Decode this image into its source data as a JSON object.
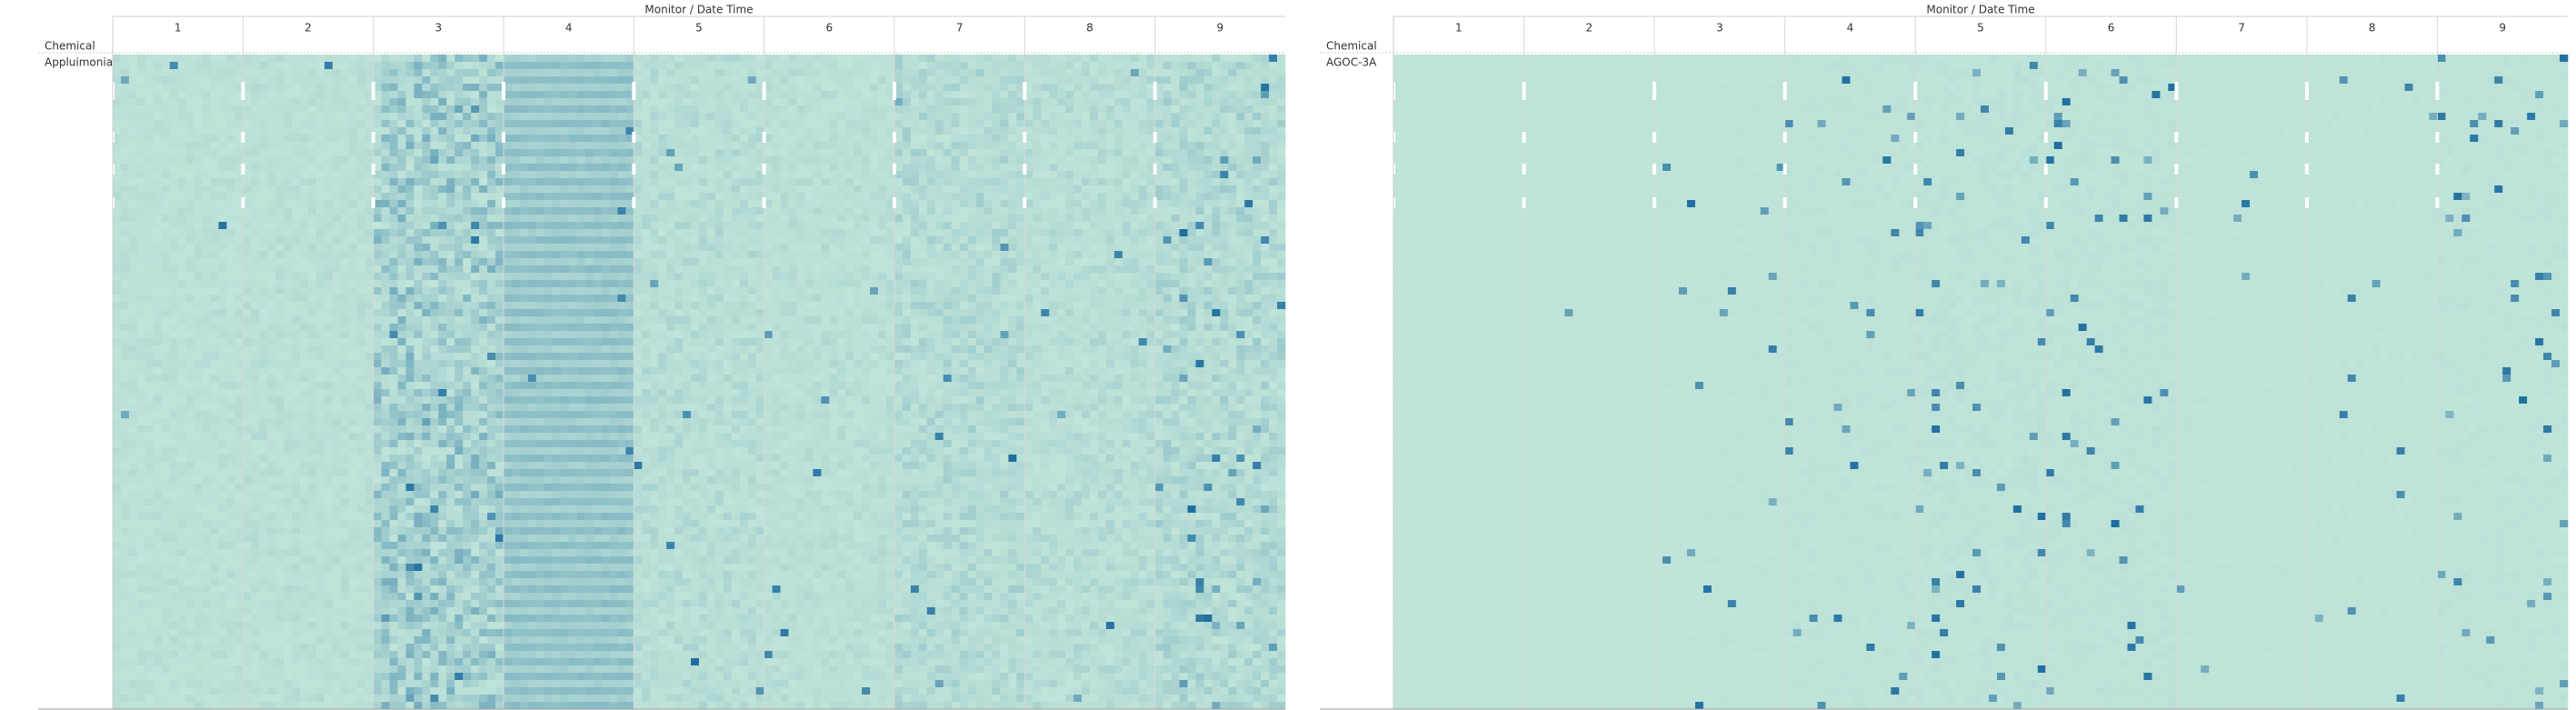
{
  "panels": [
    {
      "title": "Monitor / Date Time",
      "row_header": "Chemical",
      "row_label": "Appluimonia",
      "columns": [
        1,
        2,
        3,
        4,
        5,
        6,
        7,
        8,
        9
      ]
    },
    {
      "title": "Monitor / Date Time",
      "row_header": "Chemical",
      "row_label": "AGOC-3A",
      "columns": [
        1,
        2,
        3,
        4,
        5,
        6,
        7,
        8,
        9
      ]
    }
  ]
}
